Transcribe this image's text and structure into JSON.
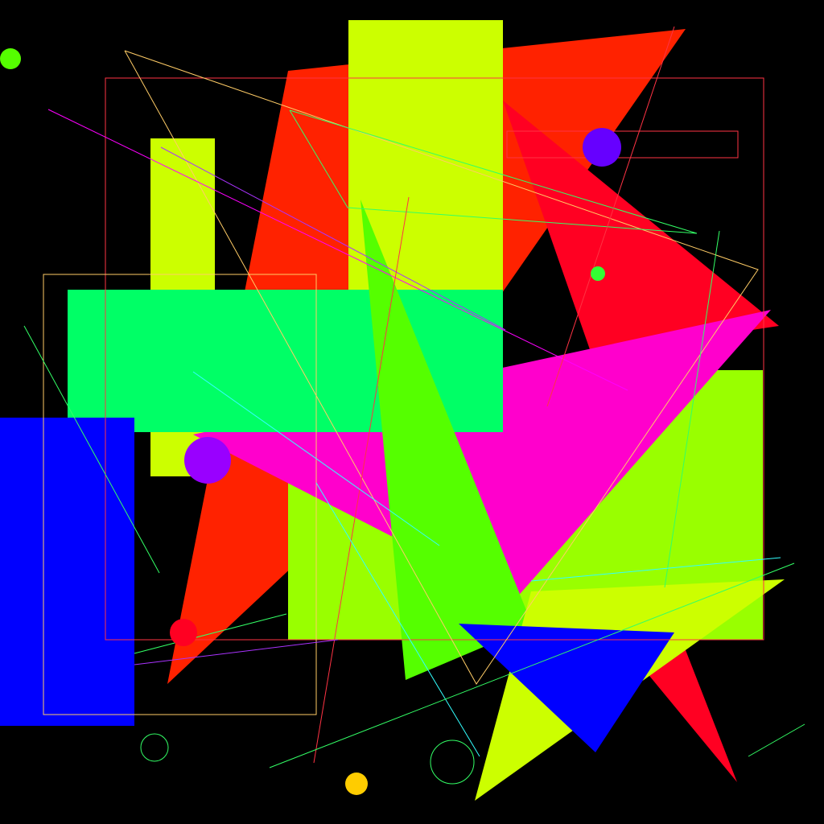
{
  "canvas": {
    "background": "#000000"
  },
  "palette": {
    "black": "#000000",
    "red_orange": "#ff2200",
    "red": "#ff0022",
    "yellow_green": "#ccff00",
    "lime": "#99ff00",
    "bright_green": "#55ff00",
    "spring_green": "#00ff66",
    "magenta": "#ff00cc",
    "blue": "#0000ff",
    "violet": "#6600ff",
    "purple": "#9900ff",
    "amber": "#ffcc00",
    "outline_red": "#ff3344",
    "outline_amber": "#ffcc66",
    "outline_green": "#33ff66",
    "outline_cyan": "#33ffff",
    "outline_violet": "#aa33ff"
  }
}
